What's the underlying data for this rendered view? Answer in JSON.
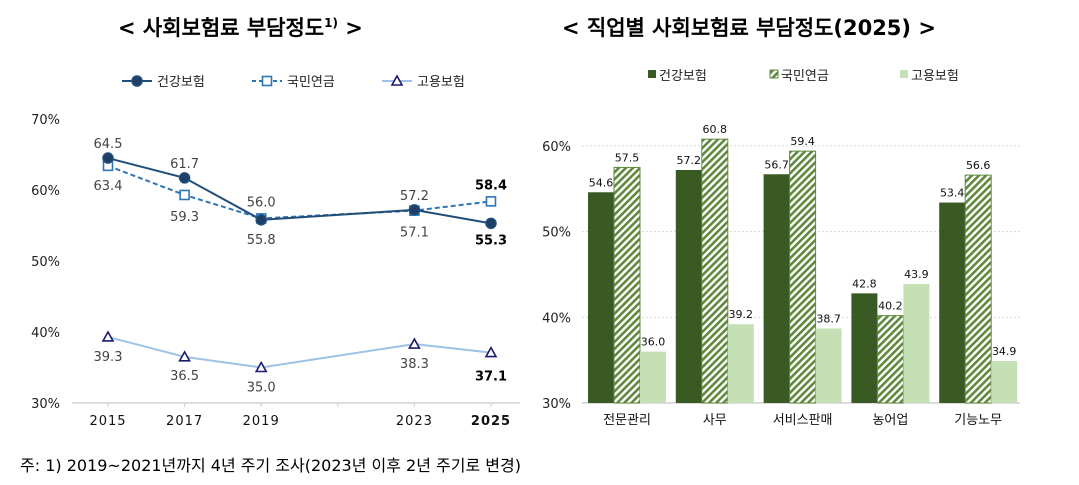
{
  "titles": {
    "left": "<  사회보험료 부담정도",
    "left_sup": "1)",
    "left_close": "  >",
    "right": "<  직업별 사회보험료 부담정도(2025)  >"
  },
  "note": "주: 1) 2019~2021년까지 4년 주기 조사(2023년 이후 2년 주기로 변경)",
  "chart_data": [
    {
      "type": "line",
      "x": [
        "2015",
        "2017",
        "2019",
        "",
        "2023",
        "2025"
      ],
      "ylim": [
        30,
        70
      ],
      "yticks": [
        "30%",
        "40%",
        "50%",
        "60%",
        "70%"
      ],
      "grid": false,
      "legend": "top",
      "series": [
        {
          "name": "건강보험",
          "values": [
            64.5,
            61.7,
            55.8,
            null,
            57.2,
            55.3
          ],
          "labels": [
            "64.5",
            "61.7",
            "55.8",
            "",
            "57.2",
            "55.3"
          ],
          "color": "#1f4e79",
          "marker": "circle",
          "dash": false
        },
        {
          "name": "국민연금",
          "values": [
            63.4,
            59.3,
            56.0,
            null,
            57.1,
            58.4
          ],
          "labels": [
            "63.4",
            "59.3",
            "56.0",
            "",
            "57.1",
            "58.4"
          ],
          "color": "#2e75b6",
          "marker": "square",
          "dash": true
        },
        {
          "name": "고용보험",
          "values": [
            39.3,
            36.5,
            35.0,
            null,
            38.3,
            37.1
          ],
          "labels": [
            "39.3",
            "36.5",
            "35.0",
            "",
            "38.3",
            "37.1"
          ],
          "color": "#9dc3e6",
          "marker": "triangle",
          "dash": false
        }
      ]
    },
    {
      "type": "bar",
      "categories": [
        "전문관리",
        "사무",
        "서비스판매",
        "농어업",
        "기능노무"
      ],
      "ylim": [
        30,
        60
      ],
      "yticks": [
        "30%",
        "40%",
        "50%",
        "60%"
      ],
      "grid": true,
      "legend": "top",
      "series": [
        {
          "name": "건강보험",
          "values": [
            54.6,
            57.2,
            56.7,
            42.8,
            53.4
          ],
          "labels": [
            "54.6",
            "57.2",
            "56.7",
            "42.8",
            "53.4"
          ],
          "color": "#3a5a24"
        },
        {
          "name": "국민연금",
          "values": [
            57.5,
            60.8,
            59.4,
            40.2,
            56.6
          ],
          "labels": [
            "57.5",
            "60.8",
            "59.4",
            "40.2",
            "56.6"
          ],
          "color": "#5f8a3e",
          "pattern": "hatch"
        },
        {
          "name": "고용보험",
          "values": [
            36.0,
            39.2,
            38.7,
            43.9,
            34.9
          ],
          "labels": [
            "36.0",
            "39.2",
            "38.7",
            "43.9",
            "34.9"
          ],
          "color": "#c5e0b4"
        }
      ]
    }
  ]
}
